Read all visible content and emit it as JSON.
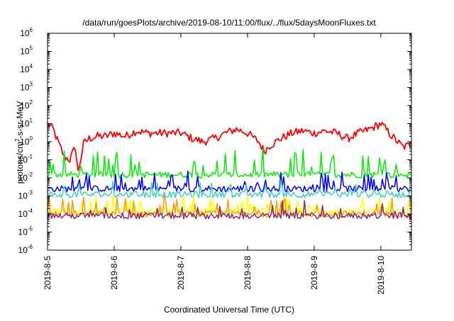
{
  "chart_data": {
    "type": "line",
    "title": "/data/run/goesPlots/archive/2019-08-10/11:00/flux/../flux/5daysMoonFluxes.txt",
    "xlabel": "Coordinated Universal Time (UTC)",
    "ylabel_parts": [
      "protons/cm",
      "2",
      "-s-sr-MeV"
    ],
    "y_scale": "log",
    "ylim": [
      1e-06,
      1000000.0
    ],
    "xlim": [
      "2019-8-5",
      "2019-8-10 11:00"
    ],
    "grid": false,
    "legend": "none",
    "x_tick_labels": [
      "2019-8-5",
      "2019-8-6",
      "2019-8-7",
      "2019-8-8",
      "2019-8-9",
      "2019-8-10"
    ],
    "y_tick_labels": [
      {
        "base": "10",
        "exp": "-6"
      },
      {
        "base": "10",
        "exp": "-5"
      },
      {
        "base": "10",
        "exp": "-4"
      },
      {
        "base": "10",
        "exp": "-3"
      },
      {
        "base": "10",
        "exp": "-2"
      },
      {
        "base": "10",
        "exp": "-1"
      },
      {
        "base": "10",
        "exp": "0"
      },
      {
        "base": "10",
        "exp": "1"
      },
      {
        "base": "10",
        "exp": "2"
      },
      {
        "base": "10",
        "exp": "3"
      },
      {
        "base": "10",
        "exp": "4"
      },
      {
        "base": "10",
        "exp": "5"
      },
      {
        "base": "10",
        "exp": "6"
      }
    ],
    "series": [
      {
        "color": "#ff0000",
        "x": [
          "2019-8-5 00:00",
          "2019-8-5 02:00",
          "2019-8-5 04:00",
          "2019-8-5 06:00",
          "2019-8-5 08:00",
          "2019-8-5 10:00",
          "2019-8-5 11:00",
          "2019-8-5 13:00",
          "2019-8-5 15:00",
          "2019-8-5 18:00",
          "2019-8-5 21:00",
          "2019-8-6 00:00",
          "2019-8-6 04:00",
          "2019-8-6 08:00",
          "2019-8-6 12:00",
          "2019-8-6 16:00",
          "2019-8-6 20:00",
          "2019-8-7 00:00",
          "2019-8-7 04:00",
          "2019-8-7 08:00",
          "2019-8-7 12:00",
          "2019-8-7 16:00",
          "2019-8-7 20:00",
          "2019-8-8 00:00",
          "2019-8-8 04:00",
          "2019-8-8 06:00",
          "2019-8-8 08:00",
          "2019-8-8 12:00",
          "2019-8-8 16:00",
          "2019-8-8 20:00",
          "2019-8-9 00:00",
          "2019-8-9 04:00",
          "2019-8-9 08:00",
          "2019-8-9 12:00",
          "2019-8-9 16:00",
          "2019-8-9 20:00",
          "2019-8-10 00:00",
          "2019-8-10 04:00",
          "2019-8-10 08:00",
          "2019-8-10 11:00"
        ],
        "y": [
          10,
          5,
          0.8,
          0.15,
          0.1,
          0.5,
          0.02,
          0.8,
          1.5,
          2,
          2,
          3,
          2,
          4,
          3,
          3,
          3,
          3,
          1.5,
          1,
          1.5,
          3,
          5,
          3,
          1,
          0.3,
          0.6,
          1.5,
          3,
          4,
          3,
          4,
          3,
          1.5,
          3,
          5,
          10,
          2,
          0.5,
          0.7
        ]
      },
      {
        "color": "#00ee00",
        "x": [
          "2019-8-5 00:00",
          "2019-8-10 11:00"
        ],
        "y": [
          0.015,
          0.015
        ]
      },
      {
        "color": "#0000ff",
        "x": [
          "2019-8-5 00:00",
          "2019-8-10 11:00"
        ],
        "y": [
          0.0025,
          0.0025
        ]
      },
      {
        "color": "#40d0c0",
        "x": [
          "2019-8-5 00:00",
          "2019-8-10 11:00"
        ],
        "y": [
          0.0012,
          0.0012
        ]
      },
      {
        "color": "#ffff00",
        "x": [
          "2019-8-5 00:00",
          "2019-8-10 11:00"
        ],
        "y": [
          0.00015,
          0.00015
        ]
      },
      {
        "color": "#ff9900",
        "x": [
          "2019-8-5 00:00",
          "2019-8-10 11:00"
        ],
        "y": [
          0.0001,
          0.0001
        ]
      },
      {
        "color": "#8b2a6b",
        "x": [
          "2019-8-5 00:00",
          "2019-8-10 11:00"
        ],
        "y": [
          8e-05,
          8e-05
        ]
      }
    ]
  }
}
